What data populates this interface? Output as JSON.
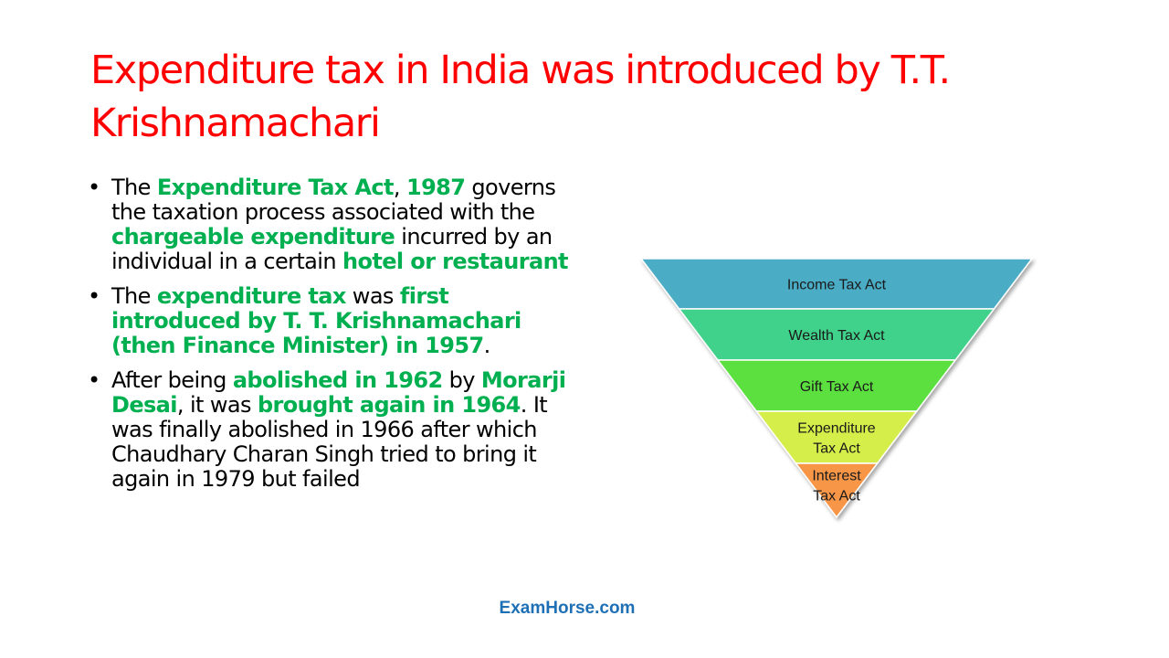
{
  "slide": {
    "title": "Expenditure tax in India was introduced by T.T. Krishnamachari",
    "bullets": [
      [
        {
          "t": "The "
        },
        {
          "t": "Expenditure Tax Act",
          "hl": true
        },
        {
          "t": ", "
        },
        {
          "t": "1987",
          "hl": true
        },
        {
          "t": " governs the taxation process associated with the "
        },
        {
          "t": "chargeable expenditure",
          "hl": true
        },
        {
          "t": " incurred by an individual in a certain "
        },
        {
          "t": "hotel or restaurant",
          "hl": true
        }
      ],
      [
        {
          "t": "The "
        },
        {
          "t": "expenditure tax",
          "hl": true
        },
        {
          "t": " was "
        },
        {
          "t": "first introduced by T. T. Krishnamachari (then Finance Minister) in 1957",
          "hl": true
        },
        {
          "t": "."
        }
      ],
      [
        {
          "t": "After being "
        },
        {
          "t": "abolished in 1962",
          "hl": true
        },
        {
          "t": " by "
        },
        {
          "t": "Morarji Desai",
          "hl": true
        },
        {
          "t": ", it was "
        },
        {
          "t": "brought again in 1964",
          "hl": true
        },
        {
          "t": ". It was finally abolished in 1966 after which Chaudhary Charan Singh tried to bring it again in 1979 but failed"
        }
      ]
    ],
    "footer": "ExamHorse.com"
  },
  "pyramid": {
    "tiers": [
      {
        "lines": [
          "Income Tax Act"
        ],
        "color": "#4bacc6"
      },
      {
        "lines": [
          "Wealth Tax Act"
        ],
        "color": "#3fd18a"
      },
      {
        "lines": [
          "Gift Tax Act"
        ],
        "color": "#5ce03f"
      },
      {
        "lines": [
          "Expenditure",
          "Tax Act"
        ],
        "color": "#d6ee4a"
      },
      {
        "lines": [
          "Interest",
          "Tax Act"
        ],
        "color": "#f79646"
      }
    ]
  },
  "colors": {
    "title": "#ff0000",
    "highlight": "#00b050",
    "footer": "#1f6fb5"
  }
}
